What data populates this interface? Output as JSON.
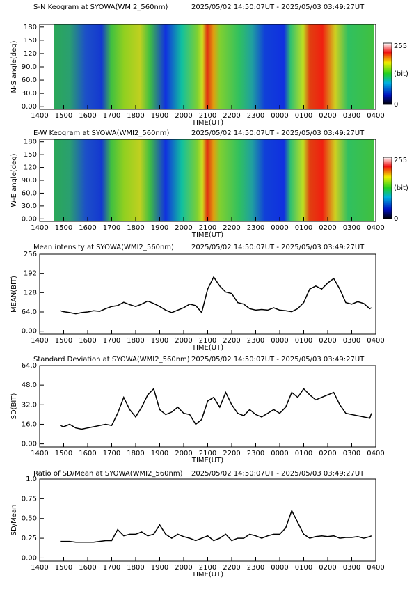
{
  "chart_data": [
    {
      "type": "keogram",
      "title": "S-N Keogram at SYOWA(WMI2_560nm)",
      "time_range": "2025/05/02 14:50:07UT - 2025/05/03 03:49:27UT",
      "ylabel": "N-S angle(deg)",
      "xlabel": "TIME(UT)",
      "xlim": [
        14,
        28
      ],
      "xticks": [
        {
          "value": 14,
          "label": "1400"
        },
        {
          "value": 15,
          "label": "1500"
        },
        {
          "value": 16,
          "label": "1600"
        },
        {
          "value": 17,
          "label": "1700"
        },
        {
          "value": 18,
          "label": "1800"
        },
        {
          "value": 19,
          "label": "1900"
        },
        {
          "value": 20,
          "label": "2000"
        },
        {
          "value": 21,
          "label": "2100"
        },
        {
          "value": 22,
          "label": "2200"
        },
        {
          "value": 23,
          "label": "2300"
        },
        {
          "value": 24,
          "label": "0000"
        },
        {
          "value": 25,
          "label": "0100"
        },
        {
          "value": 26,
          "label": "0200"
        },
        {
          "value": 27,
          "label": "0300"
        },
        {
          "value": 28,
          "label": "0400"
        }
      ],
      "ylim": [
        -6,
        186
      ],
      "yticks": [
        {
          "value": 0,
          "label": "0.00"
        },
        {
          "value": 30,
          "label": "30.0"
        },
        {
          "value": 60,
          "label": "60.0"
        },
        {
          "value": 90,
          "label": "90.0"
        },
        120,
        150,
        180
      ],
      "colorbar": {
        "min": 0,
        "max": 255,
        "label": "(bit)"
      }
    },
    {
      "type": "keogram",
      "title": "E-W Keogram at SYOWA(WMI2_560nm)",
      "time_range": "2025/05/02 14:50:07UT - 2025/05/03 03:49:27UT",
      "ylabel": "W-E angle(deg)",
      "xlabel": "TIME(UT)",
      "xlim": [
        14,
        28
      ],
      "xticks": [
        {
          "value": 14,
          "label": "1400"
        },
        {
          "value": 15,
          "label": "1500"
        },
        {
          "value": 16,
          "label": "1600"
        },
        {
          "value": 17,
          "label": "1700"
        },
        {
          "value": 18,
          "label": "1800"
        },
        {
          "value": 19,
          "label": "1900"
        },
        {
          "value": 20,
          "label": "2000"
        },
        {
          "value": 21,
          "label": "2100"
        },
        {
          "value": 22,
          "label": "2200"
        },
        {
          "value": 23,
          "label": "2300"
        },
        {
          "value": 24,
          "label": "0000"
        },
        {
          "value": 25,
          "label": "0100"
        },
        {
          "value": 26,
          "label": "0200"
        },
        {
          "value": 27,
          "label": "0300"
        },
        {
          "value": 28,
          "label": "0400"
        }
      ],
      "ylim": [
        -6,
        186
      ],
      "yticks": [
        {
          "value": 0,
          "label": "0.00"
        },
        {
          "value": 30,
          "label": "30.0"
        },
        {
          "value": 60,
          "label": "60.0"
        },
        {
          "value": 90,
          "label": "90.0"
        },
        120,
        150,
        180
      ],
      "colorbar": {
        "min": 0,
        "max": 255,
        "label": "(bit)"
      }
    },
    {
      "type": "line",
      "title": "Mean intensity at SYOWA(WMI2_560nm)",
      "time_range": "2025/05/02 14:50:07UT - 2025/05/03 03:49:27UT",
      "ylabel": "MEAN(BIT)",
      "xlabel": "TIME(UT)",
      "color": "#000000",
      "xlim": [
        14,
        28
      ],
      "xticks": [
        {
          "value": 14,
          "label": "1400"
        },
        {
          "value": 15,
          "label": "1500"
        },
        {
          "value": 16,
          "label": "1600"
        },
        {
          "value": 17,
          "label": "1700"
        },
        {
          "value": 18,
          "label": "1800"
        },
        {
          "value": 19,
          "label": "1900"
        },
        {
          "value": 20,
          "label": "2000"
        },
        {
          "value": 21,
          "label": "2100"
        },
        {
          "value": 22,
          "label": "2200"
        },
        {
          "value": 23,
          "label": "2300"
        },
        {
          "value": 24,
          "label": "0000"
        },
        {
          "value": 25,
          "label": "0100"
        },
        {
          "value": 26,
          "label": "0200"
        },
        {
          "value": 27,
          "label": "0300"
        },
        {
          "value": 28,
          "label": "0400"
        }
      ],
      "ylim": [
        -10,
        256
      ],
      "yticks": [
        {
          "value": 0,
          "label": "0.00"
        },
        {
          "value": 64,
          "label": "64.0"
        },
        128,
        192,
        256
      ],
      "x": [
        14.85,
        15,
        15.25,
        15.5,
        15.75,
        16,
        16.25,
        16.5,
        16.75,
        17,
        17.25,
        17.5,
        17.75,
        18,
        18.25,
        18.5,
        18.75,
        19,
        19.25,
        19.5,
        19.75,
        20,
        20.25,
        20.5,
        20.75,
        21,
        21.25,
        21.5,
        21.75,
        22,
        22.25,
        22.5,
        22.75,
        23,
        23.25,
        23.5,
        23.75,
        24,
        24.25,
        24.5,
        24.75,
        25,
        25.25,
        25.5,
        25.75,
        26,
        26.25,
        26.5,
        26.75,
        27,
        27.25,
        27.5,
        27.75,
        27.82
      ],
      "values": [
        68,
        65,
        62,
        58,
        62,
        64,
        68,
        66,
        75,
        82,
        85,
        96,
        88,
        82,
        90,
        100,
        92,
        82,
        70,
        62,
        70,
        78,
        90,
        85,
        62,
        140,
        180,
        150,
        130,
        125,
        95,
        90,
        75,
        70,
        72,
        70,
        78,
        70,
        68,
        65,
        75,
        95,
        140,
        150,
        140,
        160,
        175,
        140,
        95,
        90,
        98,
        92,
        75,
        78
      ]
    },
    {
      "type": "line",
      "title": "Standard Deviation at SYOWA(WMI2_560nm)",
      "time_range": "2025/05/02 14:50:07UT - 2025/05/03 03:49:27UT",
      "ylabel": "SD(BIT)",
      "xlabel": "TIME(UT)",
      "color": "#000000",
      "xlim": [
        14,
        28
      ],
      "xticks": [
        {
          "value": 14,
          "label": "1400"
        },
        {
          "value": 15,
          "label": "1500"
        },
        {
          "value": 16,
          "label": "1600"
        },
        {
          "value": 17,
          "label": "1700"
        },
        {
          "value": 18,
          "label": "1800"
        },
        {
          "value": 19,
          "label": "1900"
        },
        {
          "value": 20,
          "label": "2000"
        },
        {
          "value": 21,
          "label": "2100"
        },
        {
          "value": 22,
          "label": "2200"
        },
        {
          "value": 23,
          "label": "2300"
        },
        {
          "value": 24,
          "label": "0000"
        },
        {
          "value": 25,
          "label": "0100"
        },
        {
          "value": 26,
          "label": "0200"
        },
        {
          "value": 27,
          "label": "0300"
        },
        {
          "value": 28,
          "label": "0400"
        }
      ],
      "ylim": [
        -2.5,
        64
      ],
      "yticks": [
        {
          "value": 0,
          "label": "0.00"
        },
        {
          "value": 16,
          "label": "16.0"
        },
        {
          "value": 32,
          "label": "32.0"
        },
        {
          "value": 48,
          "label": "48.0"
        },
        {
          "value": 64,
          "label": "64.0"
        }
      ],
      "x": [
        14.85,
        15,
        15.25,
        15.5,
        15.75,
        16,
        16.25,
        16.5,
        16.75,
        17,
        17.25,
        17.5,
        17.75,
        18,
        18.25,
        18.5,
        18.75,
        19,
        19.25,
        19.5,
        19.75,
        20,
        20.25,
        20.5,
        20.75,
        21,
        21.25,
        21.5,
        21.75,
        22,
        22.25,
        22.5,
        22.75,
        23,
        23.25,
        23.5,
        23.75,
        24,
        24.25,
        24.5,
        24.75,
        25,
        25.25,
        25.5,
        25.75,
        26,
        26.25,
        26.5,
        26.75,
        27,
        27.25,
        27.5,
        27.75,
        27.82
      ],
      "values": [
        15,
        14,
        16,
        13,
        12,
        13,
        14,
        15,
        16,
        15,
        25,
        38,
        28,
        22,
        30,
        40,
        45,
        28,
        24,
        26,
        30,
        25,
        24,
        16,
        20,
        35,
        38,
        30,
        42,
        32,
        25,
        23,
        28,
        24,
        22,
        25,
        28,
        25,
        30,
        42,
        38,
        45,
        40,
        36,
        38,
        40,
        42,
        32,
        25,
        24,
        23,
        22,
        21,
        25
      ]
    },
    {
      "type": "line",
      "title": "Ratio of SD/Mean at SYOWA(WMI2_560nm)",
      "time_range": "2025/05/02 14:50:07UT - 2025/05/03 03:49:27UT",
      "ylabel": "SD/Mean",
      "xlabel": "TIME(UT)",
      "color": "#000000",
      "xlim": [
        14,
        28
      ],
      "xticks": [
        {
          "value": 14,
          "label": "1400"
        },
        {
          "value": 15,
          "label": "1500"
        },
        {
          "value": 16,
          "label": "1600"
        },
        {
          "value": 17,
          "label": "1700"
        },
        {
          "value": 18,
          "label": "1800"
        },
        {
          "value": 19,
          "label": "1900"
        },
        {
          "value": 20,
          "label": "2000"
        },
        {
          "value": 21,
          "label": "2100"
        },
        {
          "value": 22,
          "label": "2200"
        },
        {
          "value": 23,
          "label": "2300"
        },
        {
          "value": 24,
          "label": "0000"
        },
        {
          "value": 25,
          "label": "0100"
        },
        {
          "value": 26,
          "label": "0200"
        },
        {
          "value": 27,
          "label": "0300"
        },
        {
          "value": 28,
          "label": "0400"
        }
      ],
      "ylim": [
        -0.04,
        1.0
      ],
      "yticks": [
        {
          "value": 0,
          "label": "0.00"
        },
        0.25,
        {
          "value": 0.5,
          "label": "0.50"
        },
        0.75,
        {
          "value": 1,
          "label": "1.0"
        }
      ],
      "x": [
        14.85,
        15,
        15.25,
        15.5,
        15.75,
        16,
        16.25,
        16.5,
        16.75,
        17,
        17.25,
        17.5,
        17.75,
        18,
        18.25,
        18.5,
        18.75,
        19,
        19.25,
        19.5,
        19.75,
        20,
        20.25,
        20.5,
        20.75,
        21,
        21.25,
        21.5,
        21.75,
        22,
        22.25,
        22.5,
        22.75,
        23,
        23.25,
        23.5,
        23.75,
        24,
        24.25,
        24.5,
        24.75,
        25,
        25.25,
        25.5,
        25.75,
        26,
        26.25,
        26.5,
        26.75,
        27,
        27.25,
        27.5,
        27.75,
        27.82
      ],
      "values": [
        0.21,
        0.21,
        0.21,
        0.2,
        0.2,
        0.2,
        0.2,
        0.21,
        0.22,
        0.22,
        0.36,
        0.28,
        0.3,
        0.3,
        0.33,
        0.28,
        0.3,
        0.42,
        0.3,
        0.25,
        0.3,
        0.27,
        0.25,
        0.22,
        0.25,
        0.28,
        0.22,
        0.25,
        0.3,
        0.22,
        0.25,
        0.25,
        0.3,
        0.28,
        0.25,
        0.28,
        0.3,
        0.3,
        0.38,
        0.6,
        0.45,
        0.3,
        0.25,
        0.27,
        0.28,
        0.27,
        0.28,
        0.25,
        0.26,
        0.26,
        0.27,
        0.25,
        0.27,
        0.28
      ]
    }
  ]
}
